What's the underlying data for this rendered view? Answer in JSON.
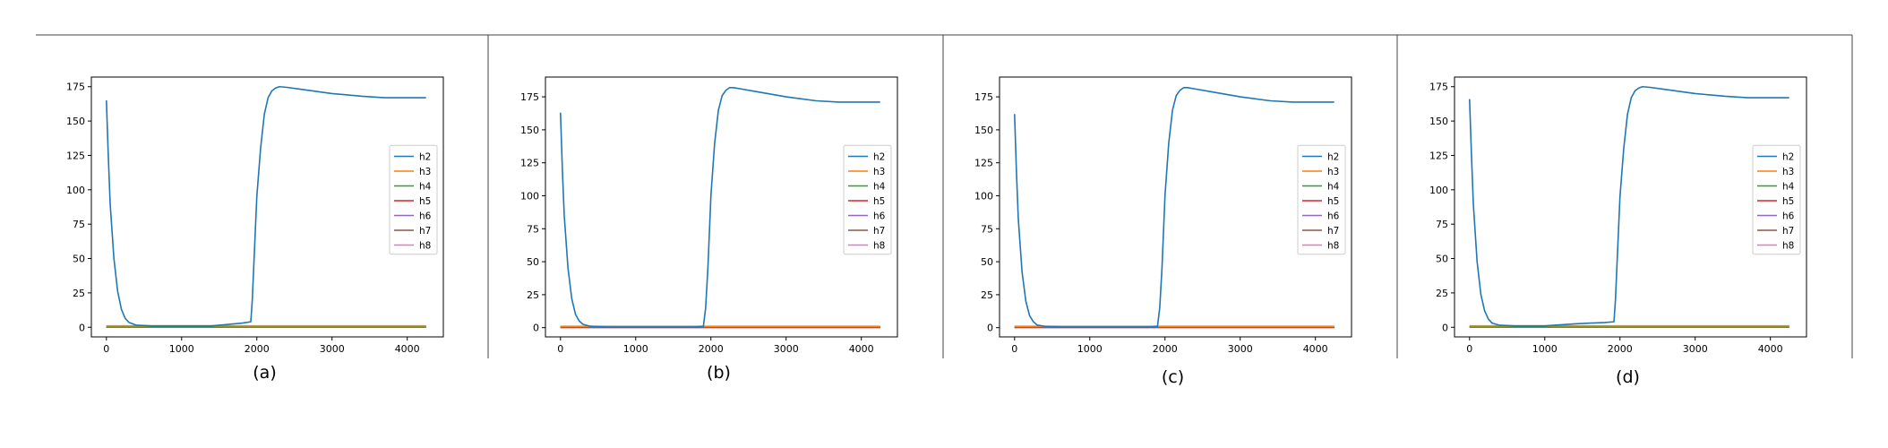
{
  "chart_data": [
    {
      "type": "line",
      "label": "(a)",
      "xlim": [
        -200,
        4480
      ],
      "ylim": [
        -7,
        182
      ],
      "xticks": [
        0,
        1000,
        2000,
        3000,
        4000
      ],
      "yticks": [
        0,
        25,
        50,
        75,
        100,
        125,
        150,
        175
      ],
      "grid": false,
      "legend": "center-right",
      "series": [
        {
          "name": "h2",
          "color": "#1f77b4",
          "x": [
            0,
            25,
            50,
            100,
            150,
            200,
            250,
            300,
            400,
            600,
            1000,
            1400,
            1800,
            1920,
            1940,
            1960,
            2000,
            2050,
            2100,
            2150,
            2200,
            2250,
            2300,
            2400,
            2600,
            3000,
            3400,
            3700,
            4000,
            4250
          ],
          "y": [
            165,
            125,
            90,
            50,
            26,
            13,
            6.5,
            3.5,
            1.5,
            1,
            1,
            1,
            3,
            4,
            20,
            45,
            95,
            130,
            155,
            167,
            172,
            174,
            175,
            174.5,
            173,
            170,
            168,
            167,
            167,
            167
          ]
        },
        {
          "name": "h3",
          "color": "#ff7f0e",
          "x": [
            0,
            4250
          ],
          "y": [
            1.0,
            1.0
          ]
        },
        {
          "name": "h4",
          "color": "#2ca02c",
          "x": [
            0,
            4250
          ],
          "y": [
            0.6,
            0.6
          ]
        },
        {
          "name": "h5",
          "color": "#d62728",
          "x": [
            0,
            4250
          ],
          "y": [
            0.4,
            0.4
          ]
        },
        {
          "name": "h6",
          "color": "#9467bd",
          "x": [
            0,
            4250
          ],
          "y": [
            0.3,
            0.3
          ]
        },
        {
          "name": "h7",
          "color": "#8c564b",
          "x": [
            0,
            4250
          ],
          "y": [
            0.2,
            0.2
          ]
        },
        {
          "name": "h8",
          "color": "#e377c2",
          "x": [
            0,
            4250
          ],
          "y": [
            0.1,
            0.1
          ]
        }
      ]
    },
    {
      "type": "line",
      "label": "(b)",
      "xlim": [
        -200,
        4480
      ],
      "ylim": [
        -7,
        190
      ],
      "xticks": [
        0,
        1000,
        2000,
        3000,
        4000
      ],
      "yticks": [
        0,
        25,
        50,
        75,
        100,
        125,
        150,
        175
      ],
      "grid": false,
      "legend": "center-right",
      "series": [
        {
          "name": "h2",
          "color": "#1f77b4",
          "x": [
            0,
            25,
            50,
            100,
            150,
            200,
            250,
            300,
            400,
            600,
            1000,
            1400,
            1800,
            1900,
            1930,
            1960,
            2000,
            2050,
            2100,
            2150,
            2200,
            2250,
            2300,
            2400,
            2600,
            3000,
            3400,
            3700,
            4000,
            4250
          ],
          "y": [
            163,
            120,
            85,
            45,
            22,
            10,
            5,
            2.5,
            1,
            0.5,
            0.5,
            0.5,
            0.5,
            1,
            15,
            45,
            100,
            140,
            165,
            176,
            180,
            182,
            182,
            181,
            179,
            175,
            172,
            171,
            171,
            171
          ]
        },
        {
          "name": "h3",
          "color": "#ff7f0e",
          "x": [
            0,
            4250
          ],
          "y": [
            1.0,
            1.0
          ]
        },
        {
          "name": "h4",
          "color": "#2ca02c",
          "x": [
            0,
            4250
          ],
          "y": [
            0.6,
            0.6
          ]
        },
        {
          "name": "h5",
          "color": "#d62728",
          "x": [
            0,
            4250
          ],
          "y": [
            0.4,
            0.4
          ]
        },
        {
          "name": "h6",
          "color": "#9467bd",
          "x": [
            0,
            4250
          ],
          "y": [
            0.3,
            0.3
          ]
        },
        {
          "name": "h7",
          "color": "#8c564b",
          "x": [
            0,
            4250
          ],
          "y": [
            0.2,
            0.2
          ]
        },
        {
          "name": "h8",
          "color": "#e377c2",
          "x": [
            0,
            4250
          ],
          "y": [
            0.1,
            0.1
          ]
        }
      ]
    },
    {
      "type": "line",
      "label": "(c)",
      "xlim": [
        -200,
        4480
      ],
      "ylim": [
        -7,
        190
      ],
      "xticks": [
        0,
        1000,
        2000,
        3000,
        4000
      ],
      "yticks": [
        0,
        25,
        50,
        75,
        100,
        125,
        150,
        175
      ],
      "grid": false,
      "legend": "center-right",
      "series": [
        {
          "name": "h2",
          "color": "#1f77b4",
          "x": [
            0,
            25,
            50,
            100,
            150,
            200,
            250,
            300,
            400,
            600,
            1000,
            1400,
            1800,
            1900,
            1930,
            1960,
            2000,
            2050,
            2100,
            2150,
            2200,
            2250,
            2300,
            2400,
            2600,
            3000,
            3400,
            3700,
            4000,
            4250
          ],
          "y": [
            162,
            118,
            82,
            42,
            20,
            9,
            4.5,
            2,
            1,
            0.5,
            0.5,
            0.5,
            0.5,
            1,
            15,
            45,
            100,
            140,
            165,
            176,
            180,
            182,
            182,
            181,
            179,
            175,
            172,
            171,
            171,
            171
          ]
        },
        {
          "name": "h3",
          "color": "#ff7f0e",
          "x": [
            0,
            4250
          ],
          "y": [
            1.0,
            1.0
          ]
        },
        {
          "name": "h4",
          "color": "#2ca02c",
          "x": [
            0,
            4250
          ],
          "y": [
            0.6,
            0.6
          ]
        },
        {
          "name": "h5",
          "color": "#d62728",
          "x": [
            0,
            4250
          ],
          "y": [
            0.4,
            0.4
          ]
        },
        {
          "name": "h6",
          "color": "#9467bd",
          "x": [
            0,
            4250
          ],
          "y": [
            0.3,
            0.3
          ]
        },
        {
          "name": "h7",
          "color": "#8c564b",
          "x": [
            0,
            4250
          ],
          "y": [
            0.2,
            0.2
          ]
        },
        {
          "name": "h8",
          "color": "#e377c2",
          "x": [
            0,
            4250
          ],
          "y": [
            0.1,
            0.1
          ]
        }
      ]
    },
    {
      "type": "line",
      "label": "(d)",
      "xlim": [
        -200,
        4480
      ],
      "ylim": [
        -7,
        182
      ],
      "xticks": [
        0,
        1000,
        2000,
        3000,
        4000
      ],
      "yticks": [
        0,
        25,
        50,
        75,
        100,
        125,
        150,
        175
      ],
      "grid": false,
      "legend": "center-right",
      "series": [
        {
          "name": "h2",
          "color": "#1f77b4",
          "x": [
            0,
            25,
            50,
            100,
            150,
            200,
            250,
            300,
            400,
            600,
            1000,
            1400,
            1800,
            1920,
            1940,
            1960,
            2000,
            2050,
            2100,
            2150,
            2200,
            2250,
            2300,
            2400,
            2600,
            3000,
            3400,
            3700,
            4000,
            4250
          ],
          "y": [
            166,
            126,
            90,
            48,
            24,
            12,
            6,
            3,
            1.5,
            1,
            1,
            2.5,
            3.5,
            4,
            20,
            45,
            95,
            130,
            155,
            167,
            172,
            174,
            175,
            174.5,
            173,
            170,
            168,
            167,
            167,
            167
          ]
        },
        {
          "name": "h3",
          "color": "#ff7f0e",
          "x": [
            0,
            4250
          ],
          "y": [
            1.0,
            1.0
          ]
        },
        {
          "name": "h4",
          "color": "#2ca02c",
          "x": [
            0,
            4250
          ],
          "y": [
            0.6,
            0.6
          ]
        },
        {
          "name": "h5",
          "color": "#d62728",
          "x": [
            0,
            4250
          ],
          "y": [
            0.4,
            0.4
          ]
        },
        {
          "name": "h6",
          "color": "#9467bd",
          "x": [
            0,
            4250
          ],
          "y": [
            0.3,
            0.3
          ]
        },
        {
          "name": "h7",
          "color": "#8c564b",
          "x": [
            0,
            4250
          ],
          "y": [
            0.2,
            0.2
          ]
        },
        {
          "name": "h8",
          "color": "#e377c2",
          "x": [
            0,
            4250
          ],
          "y": [
            0.1,
            0.1
          ]
        }
      ]
    }
  ]
}
